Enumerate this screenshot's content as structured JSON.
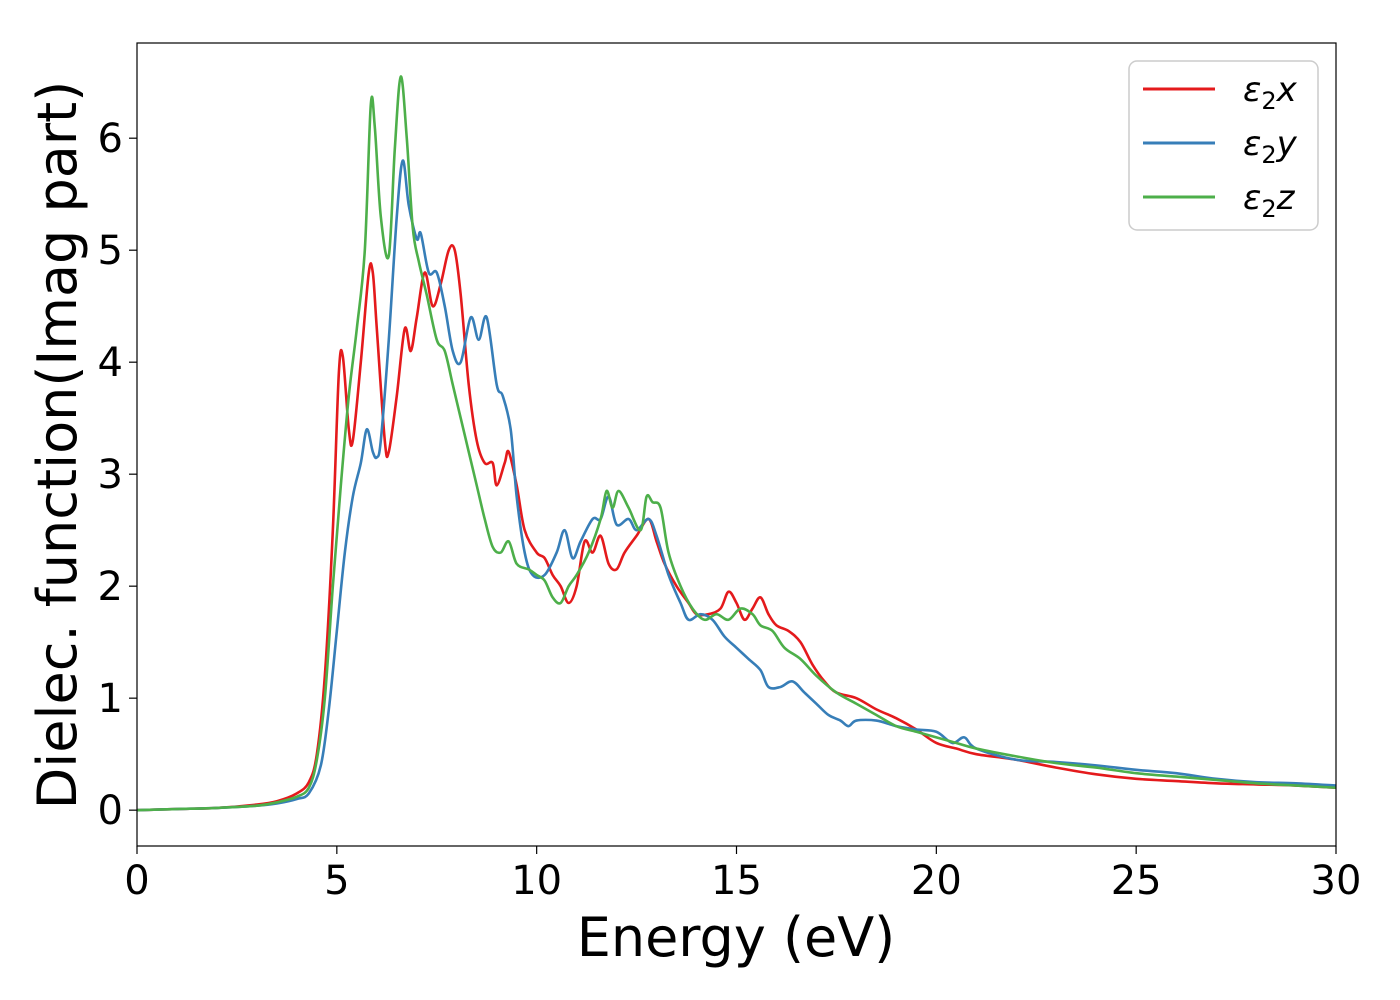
{
  "chart_data": {
    "type": "line",
    "title": "",
    "xlabel": "Energy (eV)",
    "ylabel": "Dielec. function(Imag part)",
    "xlim": [
      0,
      30
    ],
    "ylim": [
      -0.32,
      6.85
    ],
    "xticks": [
      0,
      5,
      10,
      15,
      20,
      25,
      30
    ],
    "xtick_labels": [
      "0",
      "5",
      "10",
      "15",
      "20",
      "25",
      "30"
    ],
    "yticks": [
      0,
      1,
      2,
      3,
      4,
      5,
      6
    ],
    "ytick_labels": [
      "0",
      "1",
      "2",
      "3",
      "4",
      "5",
      "6"
    ],
    "grid": false,
    "legend_position": "top-right",
    "series": [
      {
        "name": "ε₂x",
        "label_main": "ε",
        "label_sub": "2",
        "label_axis": "x",
        "color": "#e41a1c",
        "points": [
          [
            0,
            0
          ],
          [
            1,
            0.01
          ],
          [
            2,
            0.02
          ],
          [
            3,
            0.05
          ],
          [
            3.5,
            0.08
          ],
          [
            4,
            0.15
          ],
          [
            4.3,
            0.25
          ],
          [
            4.5,
            0.5
          ],
          [
            4.7,
            1.2
          ],
          [
            4.9,
            2.5
          ],
          [
            5.05,
            3.9
          ],
          [
            5.15,
            4.05
          ],
          [
            5.3,
            3.4
          ],
          [
            5.4,
            3.3
          ],
          [
            5.6,
            4.0
          ],
          [
            5.8,
            4.8
          ],
          [
            5.9,
            4.8
          ],
          [
            6.0,
            4.3
          ],
          [
            6.2,
            3.3
          ],
          [
            6.3,
            3.2
          ],
          [
            6.5,
            3.7
          ],
          [
            6.7,
            4.3
          ],
          [
            6.85,
            4.1
          ],
          [
            7.0,
            4.4
          ],
          [
            7.2,
            4.8
          ],
          [
            7.4,
            4.5
          ],
          [
            7.6,
            4.7
          ],
          [
            7.8,
            5.0
          ],
          [
            7.95,
            5.0
          ],
          [
            8.1,
            4.6
          ],
          [
            8.3,
            3.8
          ],
          [
            8.5,
            3.3
          ],
          [
            8.7,
            3.1
          ],
          [
            8.9,
            3.1
          ],
          [
            9.0,
            2.9
          ],
          [
            9.2,
            3.1
          ],
          [
            9.3,
            3.2
          ],
          [
            9.5,
            2.9
          ],
          [
            9.7,
            2.5
          ],
          [
            10.0,
            2.3
          ],
          [
            10.2,
            2.25
          ],
          [
            10.4,
            2.1
          ],
          [
            10.6,
            2.0
          ],
          [
            10.8,
            1.85
          ],
          [
            11.0,
            2.0
          ],
          [
            11.2,
            2.4
          ],
          [
            11.4,
            2.3
          ],
          [
            11.6,
            2.45
          ],
          [
            11.8,
            2.2
          ],
          [
            12.0,
            2.15
          ],
          [
            12.2,
            2.3
          ],
          [
            12.5,
            2.45
          ],
          [
            12.8,
            2.6
          ],
          [
            13.0,
            2.4
          ],
          [
            13.2,
            2.2
          ],
          [
            13.5,
            2.0
          ],
          [
            13.8,
            1.85
          ],
          [
            14.0,
            1.75
          ],
          [
            14.3,
            1.75
          ],
          [
            14.6,
            1.8
          ],
          [
            14.8,
            1.95
          ],
          [
            15.0,
            1.85
          ],
          [
            15.2,
            1.7
          ],
          [
            15.4,
            1.8
          ],
          [
            15.6,
            1.9
          ],
          [
            15.8,
            1.75
          ],
          [
            16.0,
            1.65
          ],
          [
            16.3,
            1.6
          ],
          [
            16.6,
            1.5
          ],
          [
            16.9,
            1.3
          ],
          [
            17.2,
            1.15
          ],
          [
            17.5,
            1.05
          ],
          [
            18.0,
            1.0
          ],
          [
            18.5,
            0.9
          ],
          [
            19.0,
            0.82
          ],
          [
            19.5,
            0.72
          ],
          [
            20.0,
            0.6
          ],
          [
            20.5,
            0.55
          ],
          [
            21.0,
            0.5
          ],
          [
            22.0,
            0.45
          ],
          [
            23.0,
            0.38
          ],
          [
            24.0,
            0.32
          ],
          [
            25.0,
            0.28
          ],
          [
            26.0,
            0.26
          ],
          [
            27.0,
            0.24
          ],
          [
            28.0,
            0.23
          ],
          [
            29.0,
            0.22
          ],
          [
            30.0,
            0.2
          ]
        ]
      },
      {
        "name": "ε₂y",
        "label_main": "ε",
        "label_sub": "2",
        "label_axis": "y",
        "color": "#377eb8",
        "points": [
          [
            0,
            0
          ],
          [
            1,
            0.01
          ],
          [
            2,
            0.02
          ],
          [
            3,
            0.04
          ],
          [
            3.5,
            0.06
          ],
          [
            4,
            0.1
          ],
          [
            4.3,
            0.15
          ],
          [
            4.6,
            0.4
          ],
          [
            4.8,
            0.9
          ],
          [
            5.0,
            1.6
          ],
          [
            5.2,
            2.3
          ],
          [
            5.4,
            2.8
          ],
          [
            5.6,
            3.1
          ],
          [
            5.75,
            3.4
          ],
          [
            5.9,
            3.2
          ],
          [
            6.0,
            3.15
          ],
          [
            6.1,
            3.3
          ],
          [
            6.3,
            4.2
          ],
          [
            6.5,
            5.3
          ],
          [
            6.65,
            5.8
          ],
          [
            6.8,
            5.4
          ],
          [
            7.0,
            5.1
          ],
          [
            7.1,
            5.15
          ],
          [
            7.3,
            4.8
          ],
          [
            7.5,
            4.8
          ],
          [
            7.7,
            4.5
          ],
          [
            7.9,
            4.1
          ],
          [
            8.1,
            4.0
          ],
          [
            8.35,
            4.4
          ],
          [
            8.55,
            4.2
          ],
          [
            8.75,
            4.4
          ],
          [
            9.0,
            3.8
          ],
          [
            9.15,
            3.7
          ],
          [
            9.35,
            3.4
          ],
          [
            9.5,
            2.8
          ],
          [
            9.7,
            2.3
          ],
          [
            9.9,
            2.1
          ],
          [
            10.2,
            2.1
          ],
          [
            10.5,
            2.3
          ],
          [
            10.7,
            2.5
          ],
          [
            10.9,
            2.25
          ],
          [
            11.1,
            2.4
          ],
          [
            11.4,
            2.6
          ],
          [
            11.6,
            2.6
          ],
          [
            11.8,
            2.8
          ],
          [
            12.0,
            2.55
          ],
          [
            12.3,
            2.6
          ],
          [
            12.5,
            2.5
          ],
          [
            12.8,
            2.6
          ],
          [
            13.0,
            2.45
          ],
          [
            13.3,
            2.1
          ],
          [
            13.6,
            1.85
          ],
          [
            13.8,
            1.7
          ],
          [
            14.1,
            1.75
          ],
          [
            14.4,
            1.7
          ],
          [
            14.7,
            1.55
          ],
          [
            15.0,
            1.45
          ],
          [
            15.3,
            1.35
          ],
          [
            15.6,
            1.25
          ],
          [
            15.8,
            1.1
          ],
          [
            16.1,
            1.1
          ],
          [
            16.4,
            1.15
          ],
          [
            16.7,
            1.05
          ],
          [
            17.0,
            0.95
          ],
          [
            17.3,
            0.85
          ],
          [
            17.6,
            0.8
          ],
          [
            17.8,
            0.75
          ],
          [
            18.0,
            0.8
          ],
          [
            18.5,
            0.8
          ],
          [
            19.0,
            0.75
          ],
          [
            19.5,
            0.72
          ],
          [
            20.0,
            0.7
          ],
          [
            20.4,
            0.6
          ],
          [
            20.7,
            0.65
          ],
          [
            21.0,
            0.55
          ],
          [
            22.0,
            0.45
          ],
          [
            23.0,
            0.43
          ],
          [
            24.0,
            0.4
          ],
          [
            25.0,
            0.36
          ],
          [
            26.0,
            0.33
          ],
          [
            27.0,
            0.28
          ],
          [
            28.0,
            0.25
          ],
          [
            29.0,
            0.24
          ],
          [
            30.0,
            0.22
          ]
        ]
      },
      {
        "name": "ε₂z",
        "label_main": "ε",
        "label_sub": "2",
        "label_axis": "z",
        "color": "#4daf4a",
        "points": [
          [
            0,
            0
          ],
          [
            1,
            0.01
          ],
          [
            2,
            0.02
          ],
          [
            3,
            0.04
          ],
          [
            3.5,
            0.07
          ],
          [
            4,
            0.12
          ],
          [
            4.3,
            0.2
          ],
          [
            4.5,
            0.45
          ],
          [
            4.7,
            1.0
          ],
          [
            4.9,
            2.0
          ],
          [
            5.1,
            2.9
          ],
          [
            5.3,
            3.7
          ],
          [
            5.5,
            4.3
          ],
          [
            5.7,
            5.0
          ],
          [
            5.85,
            6.3
          ],
          [
            5.95,
            6.1
          ],
          [
            6.1,
            5.3
          ],
          [
            6.3,
            4.95
          ],
          [
            6.45,
            5.9
          ],
          [
            6.6,
            6.55
          ],
          [
            6.75,
            6.0
          ],
          [
            6.9,
            5.2
          ],
          [
            7.05,
            4.9
          ],
          [
            7.25,
            4.6
          ],
          [
            7.5,
            4.2
          ],
          [
            7.7,
            4.1
          ],
          [
            7.9,
            3.8
          ],
          [
            8.1,
            3.5
          ],
          [
            8.3,
            3.2
          ],
          [
            8.5,
            2.9
          ],
          [
            8.7,
            2.6
          ],
          [
            8.9,
            2.35
          ],
          [
            9.1,
            2.3
          ],
          [
            9.3,
            2.4
          ],
          [
            9.5,
            2.2
          ],
          [
            9.8,
            2.15
          ],
          [
            10.0,
            2.1
          ],
          [
            10.2,
            2.05
          ],
          [
            10.4,
            1.9
          ],
          [
            10.6,
            1.85
          ],
          [
            10.8,
            2.0
          ],
          [
            11.0,
            2.1
          ],
          [
            11.3,
            2.3
          ],
          [
            11.6,
            2.6
          ],
          [
            11.75,
            2.85
          ],
          [
            11.9,
            2.7
          ],
          [
            12.05,
            2.85
          ],
          [
            12.3,
            2.7
          ],
          [
            12.6,
            2.5
          ],
          [
            12.75,
            2.8
          ],
          [
            12.9,
            2.75
          ],
          [
            13.1,
            2.7
          ],
          [
            13.3,
            2.3
          ],
          [
            13.6,
            2.0
          ],
          [
            13.9,
            1.8
          ],
          [
            14.2,
            1.7
          ],
          [
            14.5,
            1.75
          ],
          [
            14.8,
            1.7
          ],
          [
            15.1,
            1.8
          ],
          [
            15.4,
            1.75
          ],
          [
            15.6,
            1.65
          ],
          [
            15.9,
            1.6
          ],
          [
            16.2,
            1.45
          ],
          [
            16.6,
            1.35
          ],
          [
            17.0,
            1.2
          ],
          [
            17.5,
            1.05
          ],
          [
            18.0,
            0.95
          ],
          [
            18.5,
            0.85
          ],
          [
            19.0,
            0.75
          ],
          [
            19.5,
            0.7
          ],
          [
            20.0,
            0.65
          ],
          [
            20.5,
            0.6
          ],
          [
            21.0,
            0.55
          ],
          [
            22.0,
            0.48
          ],
          [
            23.0,
            0.42
          ],
          [
            24.0,
            0.38
          ],
          [
            25.0,
            0.33
          ],
          [
            26.0,
            0.3
          ],
          [
            27.0,
            0.27
          ],
          [
            28.0,
            0.24
          ],
          [
            29.0,
            0.22
          ],
          [
            30.0,
            0.2
          ]
        ]
      }
    ]
  }
}
